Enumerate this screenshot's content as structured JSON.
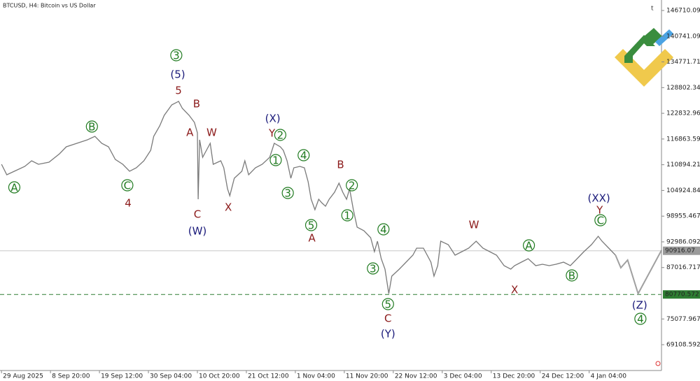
{
  "chart_data": {
    "type": "line",
    "title": "BTCUSD, H4:  Bitcoin vs US Dollar",
    "xlim": [
      -2,
      876
    ],
    "ylim": [
      63110,
      149145
    ],
    "xticks": [
      {
        "value": 0,
        "label": "29 Aug 2025"
      },
      {
        "value": 65,
        "label": "8 Sep 20:00"
      },
      {
        "value": 130,
        "label": "19 Sep 12:00"
      },
      {
        "value": 195,
        "label": "30 Sep 04:00"
      },
      {
        "value": 260,
        "label": "10 Oct 20:00"
      },
      {
        "value": 325,
        "label": "21 Oct 12:00"
      },
      {
        "value": 390,
        "label": "1 Nov 04:00"
      },
      {
        "value": 455,
        "label": "11 Nov 20:00"
      },
      {
        "value": 520,
        "label": "22 Nov 12:00"
      },
      {
        "value": 585,
        "label": "3 Dec 04:00"
      },
      {
        "value": 650,
        "label": "13 Dec 20:00"
      },
      {
        "value": 715,
        "label": "24 Dec 12:00"
      },
      {
        "value": 780,
        "label": "4 Jan 04:00"
      }
    ],
    "yticks": [
      146710.092,
      140741.092,
      134771.717,
      128802.342,
      122832.967,
      116863.592,
      110894.217,
      104924.842,
      98955.467,
      92986.092,
      87016.717,
      75077.967,
      69108.592
    ],
    "series": [
      {
        "color": "#7a7a7a",
        "x": [
          0,
          7,
          17,
          31,
          40,
          49,
          63,
          77,
          86,
          100,
          114,
          124,
          133,
          142,
          151,
          161,
          170,
          179,
          189,
          198,
          202,
          210,
          216,
          226,
          235,
          240,
          249,
          256,
          260,
          261,
          263,
          267,
          272,
          277,
          281,
          291,
          295,
          300,
          303,
          309,
          319,
          323,
          328,
          337,
          346,
          356,
          362,
          370,
          374,
          379,
          384,
          388,
          396,
          402,
          407,
          411,
          416,
          421,
          425,
          430,
          435,
          442,
          448,
          453,
          458,
          462,
          467,
          472,
          481,
          490,
          495,
          499,
          504,
          509,
          514,
          518,
          528,
          537,
          546,
          551,
          560,
          570,
          574,
          579,
          583,
          593,
          602,
          611,
          620,
          630,
          639,
          648,
          657,
          667,
          676,
          681,
          690,
          699,
          709,
          718,
          727,
          736,
          746,
          755,
          764,
          773,
          783,
          792,
          797,
          806,
          815
        ],
        "values": [
          111000,
          108560,
          109370,
          110510,
          111810,
          111000,
          111480,
          113430,
          115050,
          115870,
          116680,
          117490,
          115870,
          115050,
          112130,
          111000,
          109370,
          110190,
          111810,
          114240,
          117490,
          119930,
          122360,
          124800,
          125610,
          123990,
          122360,
          120740,
          118300,
          102880,
          116680,
          112620,
          114240,
          115870,
          111000,
          111810,
          110190,
          105320,
          103690,
          107750,
          109370,
          111810,
          108560,
          110190,
          111000,
          112620,
          115870,
          115050,
          114240,
          111810,
          107750,
          110190,
          110510,
          110190,
          106940,
          102880,
          100450,
          102880,
          102070,
          101260,
          102880,
          104510,
          106620,
          104510,
          102880,
          105320,
          100450,
          96390,
          95580,
          93950,
          90710,
          93140,
          89080,
          86650,
          80960,
          85030,
          86650,
          88270,
          89890,
          91520,
          91520,
          88270,
          85030,
          87460,
          93140,
          92330,
          89890,
          90710,
          91520,
          93140,
          91520,
          90710,
          89890,
          87460,
          86650,
          87460,
          88270,
          89080,
          87460,
          87780,
          87460,
          87780,
          88270,
          87460,
          89080,
          90710,
          92330,
          94280,
          93140,
          91520,
          89890
        ]
      },
      {
        "color": "#a0a0a0",
        "x": [
          815,
          822,
          831,
          845,
          876
        ],
        "values": [
          89890,
          86970,
          88760,
          80960,
          91030
        ]
      }
    ],
    "hlines": [
      {
        "value": 90916.07,
        "color": "#c8c8c8",
        "label_color": "#9a9a9a",
        "dashed": false
      },
      {
        "value": 80770.572,
        "color": "#2e7d32",
        "label_color": "#2e7d32",
        "dashed": true
      }
    ],
    "annotations": [
      {
        "text": "A",
        "x": 17,
        "y": 105640,
        "color": "#1f7a1f",
        "circled": true
      },
      {
        "text": "B",
        "x": 120,
        "y": 119760,
        "color": "#1f7a1f",
        "circled": true
      },
      {
        "text": "C",
        "x": 167,
        "y": 106130,
        "color": "#1f7a1f",
        "circled": true
      },
      {
        "text": "3",
        "x": 232,
        "y": 136320,
        "color": "#1f7a1f",
        "circled": true
      },
      {
        "text": "2",
        "x": 370,
        "y": 117820,
        "color": "#1f7a1f",
        "circled": true
      },
      {
        "text": "1",
        "x": 364,
        "y": 111970,
        "color": "#1f7a1f",
        "circled": true
      },
      {
        "text": "4",
        "x": 401,
        "y": 113110,
        "color": "#1f7a1f",
        "circled": true
      },
      {
        "text": "3",
        "x": 380,
        "y": 104340,
        "color": "#1f7a1f",
        "circled": true
      },
      {
        "text": "5",
        "x": 411,
        "y": 96870,
        "color": "#1f7a1f",
        "circled": true
      },
      {
        "text": "2",
        "x": 465,
        "y": 106130,
        "color": "#1f7a1f",
        "circled": true
      },
      {
        "text": "1",
        "x": 459,
        "y": 99150,
        "color": "#1f7a1f",
        "circled": true
      },
      {
        "text": "4",
        "x": 507,
        "y": 95900,
        "color": "#1f7a1f",
        "circled": true
      },
      {
        "text": "3",
        "x": 493,
        "y": 86810,
        "color": "#1f7a1f",
        "circled": true
      },
      {
        "text": "5",
        "x": 513,
        "y": 78530,
        "color": "#1f7a1f",
        "circled": true
      },
      {
        "text": "C",
        "x": 795,
        "y": 98010,
        "color": "#1f7a1f",
        "circled": true
      },
      {
        "text": "A",
        "x": 700,
        "y": 92170,
        "color": "#1f7a1f",
        "circled": true
      },
      {
        "text": "B",
        "x": 757,
        "y": 85190,
        "color": "#1f7a1f",
        "circled": true
      },
      {
        "text": "4",
        "x": 848,
        "y": 75120,
        "color": "#1f7a1f",
        "circled": true
      },
      {
        "text": "(5)",
        "x": 234,
        "y": 131940,
        "color": "#1a1a7a",
        "circled": false
      },
      {
        "text": "5",
        "x": 235,
        "y": 128210,
        "color": "#8b1a1a",
        "circled": false
      },
      {
        "text": "B",
        "x": 259,
        "y": 125120,
        "color": "#8b1a1a",
        "circled": false
      },
      {
        "text": "A",
        "x": 250,
        "y": 118470,
        "color": "#8b1a1a",
        "circled": false
      },
      {
        "text": "W",
        "x": 279,
        "y": 118470,
        "color": "#8b1a1a",
        "circled": false
      },
      {
        "text": "C",
        "x": 260,
        "y": 99470,
        "color": "#8b1a1a",
        "circled": false
      },
      {
        "text": "(W)",
        "x": 260,
        "y": 95580,
        "color": "#1a1a7a",
        "circled": false
      },
      {
        "text": "X",
        "x": 301,
        "y": 101100,
        "color": "#8b1a1a",
        "circled": false
      },
      {
        "text": "(X)",
        "x": 360,
        "y": 121710,
        "color": "#1a1a7a",
        "circled": false
      },
      {
        "text": "Y",
        "x": 359,
        "y": 118300,
        "color": "#8b1a1a",
        "circled": false
      },
      {
        "text": "B",
        "x": 450,
        "y": 111000,
        "color": "#8b1a1a",
        "circled": false
      },
      {
        "text": "A",
        "x": 412,
        "y": 93950,
        "color": "#8b1a1a",
        "circled": false
      },
      {
        "text": "4",
        "x": 168,
        "y": 102070,
        "color": "#8b1a1a",
        "circled": false
      },
      {
        "text": "W",
        "x": 627,
        "y": 97040,
        "color": "#8b1a1a",
        "circled": false
      },
      {
        "text": "X",
        "x": 681,
        "y": 81940,
        "color": "#8b1a1a",
        "circled": false
      },
      {
        "text": "C",
        "x": 513,
        "y": 75280,
        "color": "#8b1a1a",
        "circled": false
      },
      {
        "text": "(Y)",
        "x": 513,
        "y": 71710,
        "color": "#1a1a7a",
        "circled": false
      },
      {
        "text": "(XX)",
        "x": 793,
        "y": 103210,
        "color": "#1a1a7a",
        "circled": false
      },
      {
        "text": "Y",
        "x": 794,
        "y": 100450,
        "color": "#8b1a1a",
        "circled": false
      },
      {
        "text": "(Z)",
        "x": 847,
        "y": 78370,
        "color": "#1a1a7a",
        "circled": false
      }
    ]
  }
}
